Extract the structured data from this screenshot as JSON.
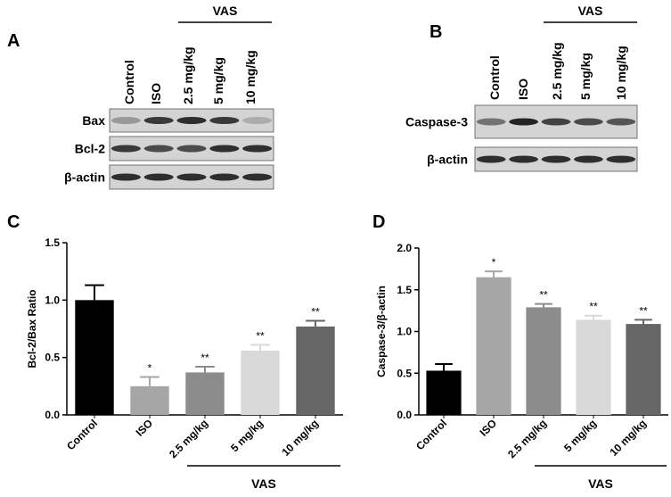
{
  "blots": [
    {
      "panel": "A",
      "group": "VAS",
      "lanes": [
        "Control",
        "ISO",
        "2.5 mg/kg",
        "5 mg/kg",
        "10 mg/kg"
      ],
      "rows": [
        "Bax",
        "Bcl-2",
        "β-actin"
      ]
    },
    {
      "panel": "B",
      "group": "VAS",
      "lanes": [
        "Control",
        "ISO",
        "2.5 mg/kg",
        "5 mg/kg",
        "10 mg/kg"
      ],
      "rows": [
        "Caspase-3",
        "β-actin"
      ]
    }
  ],
  "chart_data": [
    {
      "type": "bar",
      "panel": "C",
      "y_label": "Bcl-2/Bax Ratio",
      "group": "VAS",
      "categories": [
        "Control",
        "ISO",
        "2.5 mg/kg",
        "5 mg/kg",
        "10 mg/kg"
      ],
      "values": [
        1.0,
        0.25,
        0.37,
        0.56,
        0.77
      ],
      "errors": [
        0.13,
        0.08,
        0.05,
        0.05,
        0.05
      ],
      "annotations": [
        null,
        "*",
        "**",
        "**",
        "**"
      ],
      "colors": [
        "#000000",
        "#a6a6a6",
        "#8c8c8c",
        "#d9d9d9",
        "#666666"
      ],
      "ylim": [
        0,
        1.5
      ],
      "yticks": [
        {
          "value": 0,
          "label": "0.0"
        },
        {
          "value": 0.5,
          "label": "0.5"
        },
        {
          "value": 1,
          "label": "1.0"
        },
        {
          "value": 1.5,
          "label": "1.5"
        }
      ]
    },
    {
      "type": "bar",
      "panel": "D",
      "y_label": "Caspase-3/β-actin",
      "group": "VAS",
      "categories": [
        "Control",
        "ISO",
        "2.5 mg/kg",
        "5 mg/kg",
        "10 mg/kg"
      ],
      "values": [
        0.53,
        1.65,
        1.29,
        1.14,
        1.09
      ],
      "errors": [
        0.08,
        0.07,
        0.04,
        0.05,
        0.05
      ],
      "annotations": [
        null,
        "*",
        "**",
        "**",
        "**"
      ],
      "colors": [
        "#000000",
        "#a6a6a6",
        "#8c8c8c",
        "#d9d9d9",
        "#666666"
      ],
      "ylim": [
        0,
        2
      ],
      "yticks": [
        {
          "value": 0,
          "label": "0.0"
        },
        {
          "value": 0.5,
          "label": "0.5"
        },
        {
          "value": 1,
          "label": "1.0"
        },
        {
          "value": 1.5,
          "label": "1.5"
        },
        {
          "value": 2,
          "label": "2.0"
        }
      ]
    }
  ]
}
